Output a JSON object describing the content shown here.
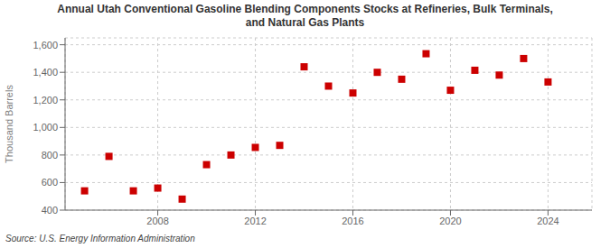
{
  "chart_data": {
    "type": "scatter",
    "title": "Annual Utah Conventional Gasoline Blending Components Stocks at Refineries, Bulk Terminals,\nand Natural Gas Plants",
    "ylabel": "Thousand Barrels",
    "annotations": [
      "Source: U.S. Energy Information Administration"
    ],
    "x": [
      2005,
      2006,
      2007,
      2008,
      2009,
      2010,
      2011,
      2012,
      2013,
      2014,
      2015,
      2016,
      2017,
      2018,
      2019,
      2020,
      2021,
      2022,
      2023,
      2024
    ],
    "values": [
      540,
      790,
      540,
      560,
      480,
      730,
      800,
      855,
      870,
      1440,
      1300,
      1250,
      1400,
      1350,
      1535,
      1270,
      1415,
      1380,
      1500,
      1330
    ],
    "xlim": [
      2004.2,
      2025.8
    ],
    "xticks": [
      2008,
      2012,
      2016,
      2020,
      2024
    ],
    "ylim": [
      400,
      1650
    ],
    "yticks": [
      400,
      600,
      800,
      {
        "value": 1000,
        "label": "1,000"
      },
      {
        "value": 1200,
        "label": "1,200"
      },
      {
        "value": 1400,
        "label": "1,400"
      },
      {
        "value": 1600,
        "label": "1,600"
      }
    ],
    "color": "#cc0000",
    "marker": "square",
    "grid": true
  }
}
